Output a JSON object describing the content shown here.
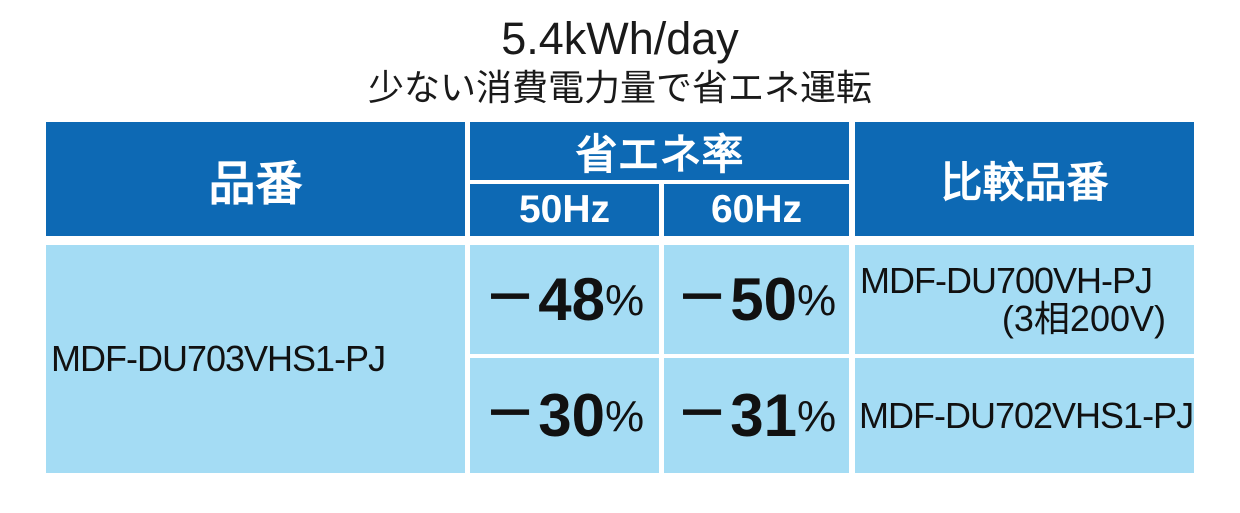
{
  "title": "5.4kWh/day",
  "subtitle": "少ない消費電力量で省エネ運転",
  "colors": {
    "header_blue": "#0d69b4",
    "body_light_blue": "#a4dcf4",
    "header_text": "#ffffff",
    "body_text": "#111111"
  },
  "table": {
    "headers": {
      "product": "品番",
      "saving_rate": "省エネ率",
      "hz50": "50Hz",
      "hz60": "60Hz",
      "comparison": "比較品番"
    },
    "product_model": "MDF-DU703VHS1-PJ",
    "rows": [
      {
        "hz50": {
          "sign": "−",
          "value": "48",
          "unit": "%"
        },
        "hz60": {
          "sign": "−",
          "value": "50",
          "unit": "%"
        },
        "comparison_model": "MDF-DU700VH-PJ",
        "comparison_note": "(3相200V)"
      },
      {
        "hz50": {
          "sign": "−",
          "value": "30",
          "unit": "%"
        },
        "hz60": {
          "sign": "−",
          "value": "31",
          "unit": "%"
        },
        "comparison_model": "MDF-DU702VHS1-PJ",
        "comparison_note": ""
      }
    ]
  }
}
